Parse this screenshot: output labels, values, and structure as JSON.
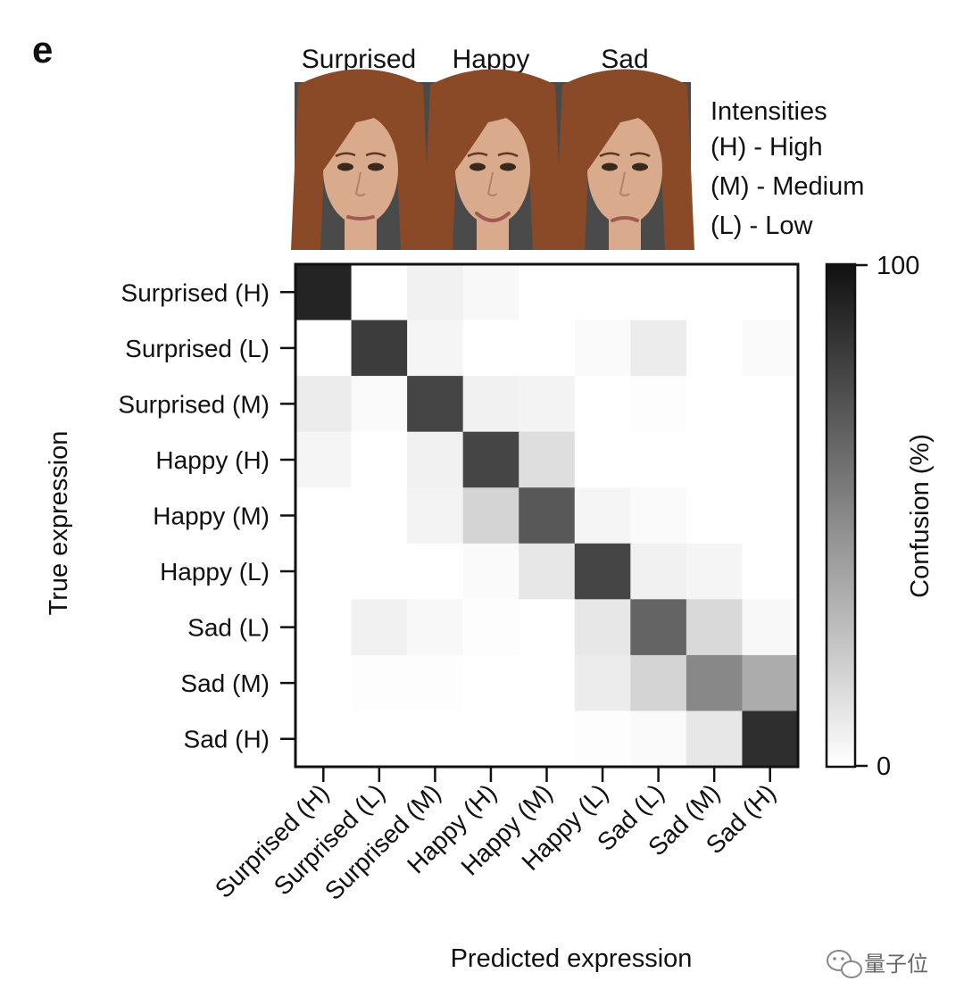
{
  "panel_label": "e",
  "faces": {
    "labels": [
      "Surprised",
      "Happy",
      "Sad"
    ],
    "background_color": "#4a4a4a",
    "hair_color": "#8a4a28",
    "skin_color": "#d9aa8c"
  },
  "intensity_legend": {
    "title": "Intensities",
    "items": [
      "(H) - High",
      "(M) - Medium",
      "(L) - Low"
    ]
  },
  "watermark": {
    "text": "量子位",
    "icon": "wechat-bubble-icon"
  },
  "chart_data": {
    "type": "heatmap",
    "title": "",
    "xlabel": "Predicted expression",
    "ylabel": "True expression",
    "row_labels": [
      "Surprised (H)",
      "Surprised (L)",
      "Surprised (M)",
      "Happy (H)",
      "Happy (M)",
      "Happy (L)",
      "Sad (L)",
      "Sad (M)",
      "Sad (H)"
    ],
    "col_labels": [
      "Surprised (H)",
      "Surprised (L)",
      "Surprised (M)",
      "Happy (H)",
      "Happy (M)",
      "Happy (L)",
      "Sad (L)",
      "Sad (M)",
      "Sad (H)"
    ],
    "values": [
      [
        92,
        0,
        6,
        3,
        0,
        0,
        0,
        0,
        0
      ],
      [
        0,
        82,
        4,
        0,
        0,
        2,
        8,
        0,
        2
      ],
      [
        8,
        2,
        78,
        6,
        5,
        0,
        1,
        0,
        0
      ],
      [
        4,
        0,
        6,
        78,
        14,
        0,
        0,
        0,
        0
      ],
      [
        0,
        0,
        5,
        18,
        70,
        4,
        2,
        0,
        0
      ],
      [
        0,
        0,
        0,
        2,
        10,
        78,
        6,
        4,
        0
      ],
      [
        0,
        6,
        3,
        1,
        0,
        10,
        65,
        16,
        3
      ],
      [
        0,
        1,
        1,
        0,
        0,
        8,
        18,
        50,
        35
      ],
      [
        0,
        0,
        0,
        0,
        0,
        1,
        2,
        10,
        88
      ]
    ],
    "colorbar": {
      "label": "Confusion (%)",
      "min": 0,
      "max": 100,
      "tick_labels": [
        "100",
        "0"
      ],
      "low_color": "#ffffff",
      "high_color": "#111111"
    }
  }
}
